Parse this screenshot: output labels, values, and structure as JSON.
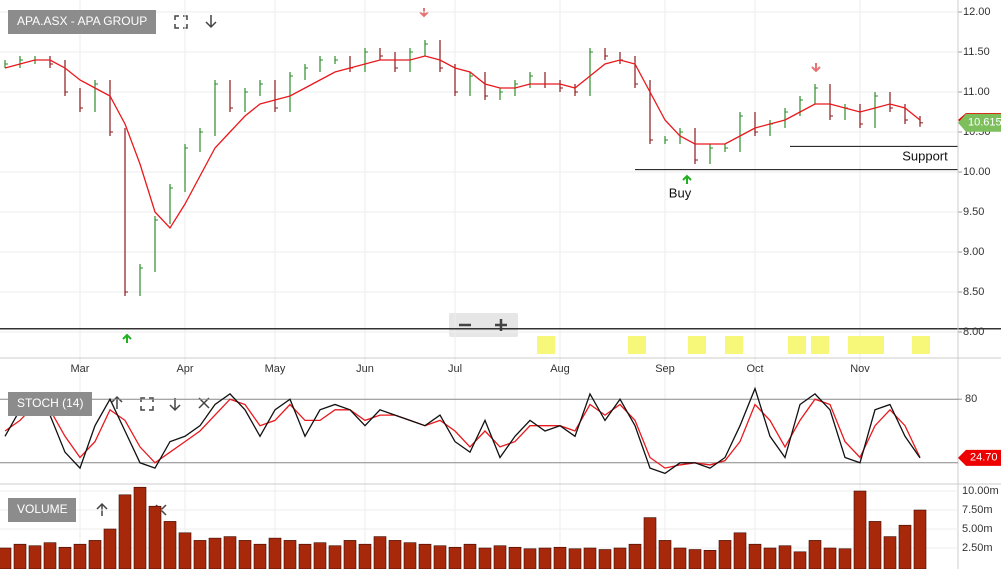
{
  "chart_data": [
    {
      "type": "price",
      "title": "APA.ASX - APA GROUP",
      "categories": [
        null,
        null,
        null,
        null,
        null,
        "Mar",
        null,
        null,
        null,
        null,
        null,
        null,
        "Apr",
        null,
        null,
        null,
        null,
        null,
        "May",
        null,
        null,
        null,
        null,
        null,
        "Jun",
        null,
        null,
        null,
        null,
        null,
        "Jul",
        null,
        null,
        null,
        null,
        null,
        null,
        "Aug",
        null,
        null,
        null,
        null,
        null,
        null,
        "Sep",
        null,
        null,
        null,
        null,
        null,
        "Oct",
        null,
        null,
        null,
        null,
        null,
        null,
        "Nov",
        null,
        null,
        null,
        null
      ],
      "series": [
        {
          "color": "#2e8b2e",
          "values": [
            11.35,
            11.4,
            11.4,
            11.35,
            11.0,
            10.8,
            11.1,
            10.5,
            8.5,
            8.8,
            9.4,
            9.8,
            10.3,
            10.5,
            11.1,
            10.8,
            11.0,
            11.1,
            10.8,
            11.2,
            11.3,
            11.4,
            11.4,
            11.3,
            11.5,
            11.45,
            11.3,
            11.5,
            11.6,
            11.3,
            11.0,
            11.2,
            10.95,
            11.0,
            11.1,
            11.2,
            11.1,
            11.05,
            11.0,
            11.5,
            11.45,
            11.4,
            11.1,
            10.4,
            10.4,
            10.5,
            10.15,
            10.3,
            10.3,
            10.7,
            10.5,
            10.6,
            10.75,
            10.9,
            11.05,
            10.7,
            10.8,
            10.6,
            10.95,
            10.8,
            10.65,
            10.615
          ]
        },
        {
          "color": "#e8191d",
          "values": [
            11.3,
            11.35,
            11.4,
            11.4,
            11.3,
            11.15,
            11.05,
            10.95,
            10.6,
            10.1,
            9.5,
            9.3,
            9.6,
            9.95,
            10.3,
            10.5,
            10.7,
            10.85,
            10.9,
            10.95,
            11.05,
            11.15,
            11.25,
            11.3,
            11.35,
            11.4,
            11.4,
            11.4,
            11.45,
            11.4,
            11.3,
            11.25,
            11.1,
            11.05,
            11.05,
            11.1,
            11.1,
            11.1,
            11.05,
            11.2,
            11.35,
            11.4,
            11.35,
            11.0,
            10.65,
            10.45,
            10.35,
            10.35,
            10.35,
            10.45,
            10.55,
            10.6,
            10.65,
            10.75,
            10.85,
            10.85,
            10.8,
            10.75,
            10.8,
            10.85,
            10.8,
            10.65
          ]
        }
      ],
      "last": 10.615,
      "levels": [
        8.04,
        10.03,
        10.32
      ],
      "annotations": [
        "Buy",
        "Support"
      ],
      "ylim": [
        7.675,
        12.15
      ],
      "yticks": [
        {
          "value": 8,
          "label": "8.00"
        },
        {
          "value": 8.5,
          "label": "8.50"
        },
        {
          "value": 9,
          "label": "9.00"
        },
        {
          "value": 9.5,
          "label": "9.50"
        },
        {
          "value": 10,
          "label": "10.00"
        },
        {
          "value": 10.5,
          "label": "10.50"
        },
        {
          "value": 11,
          "label": "11.00"
        },
        {
          "value": 11.5,
          "label": "11.50"
        },
        {
          "value": 12,
          "label": "12.00"
        }
      ],
      "grid": true
    },
    {
      "type": "stoch",
      "title": "STOCH (14)",
      "series": [
        {
          "color": "#111111",
          "values": [
            45,
            70,
            80,
            65,
            30,
            15,
            55,
            80,
            50,
            20,
            15,
            40,
            45,
            55,
            75,
            85,
            70,
            45,
            70,
            80,
            45,
            70,
            75,
            70,
            55,
            70,
            65,
            60,
            55,
            65,
            40,
            30,
            60,
            25,
            45,
            60,
            50,
            55,
            45,
            85,
            60,
            80,
            55,
            15,
            10,
            20,
            20,
            15,
            25,
            55,
            90,
            45,
            25,
            75,
            85,
            70,
            25,
            20,
            70,
            75,
            45,
            24.7
          ],
          "value_labels": {
            "61": "24.70"
          }
        },
        {
          "color": "#e8191d",
          "values": [
            50,
            60,
            75,
            70,
            45,
            25,
            40,
            70,
            60,
            35,
            20,
            30,
            40,
            50,
            65,
            80,
            75,
            55,
            60,
            75,
            60,
            60,
            70,
            70,
            60,
            65,
            65,
            60,
            55,
            60,
            50,
            35,
            50,
            35,
            40,
            55,
            55,
            55,
            50,
            75,
            65,
            75,
            60,
            25,
            15,
            18,
            20,
            18,
            22,
            40,
            75,
            60,
            35,
            60,
            80,
            75,
            40,
            25,
            55,
            70,
            55,
            25
          ]
        }
      ],
      "levels": [
        20,
        80
      ],
      "ylim": [
        0,
        100
      ],
      "yticks": [
        80
      ]
    },
    {
      "type": "volume",
      "title": "VOLUME",
      "color": "#a8280c",
      "values": [
        2500000,
        3000000,
        2800000,
        3200000,
        2600000,
        3000000,
        3500000,
        5000000,
        9500000,
        10500000,
        8000000,
        6000000,
        4500000,
        3500000,
        3800000,
        4000000,
        3500000,
        3000000,
        3800000,
        3500000,
        3000000,
        3200000,
        2800000,
        3500000,
        3000000,
        4000000,
        3500000,
        3200000,
        3000000,
        2800000,
        2600000,
        3000000,
        2500000,
        2800000,
        2600000,
        2400000,
        2500000,
        2600000,
        2400000,
        2500000,
        2300000,
        2500000,
        3000000,
        6500000,
        3500000,
        2500000,
        2300000,
        2200000,
        3500000,
        4500000,
        3000000,
        2500000,
        2800000,
        2000000,
        3500000,
        2500000,
        2400000,
        10000000,
        6000000,
        4000000,
        5500000,
        7500000
      ],
      "ylim": [
        0,
        10660000
      ],
      "yticks": [
        {
          "value": 2500000,
          "label": "2.50m"
        },
        {
          "value": 5000000,
          "label": "5.00m"
        },
        {
          "value": 7500000,
          "label": "7.50m"
        },
        {
          "value": 10000000,
          "label": "10.00m"
        }
      ]
    }
  ]
}
